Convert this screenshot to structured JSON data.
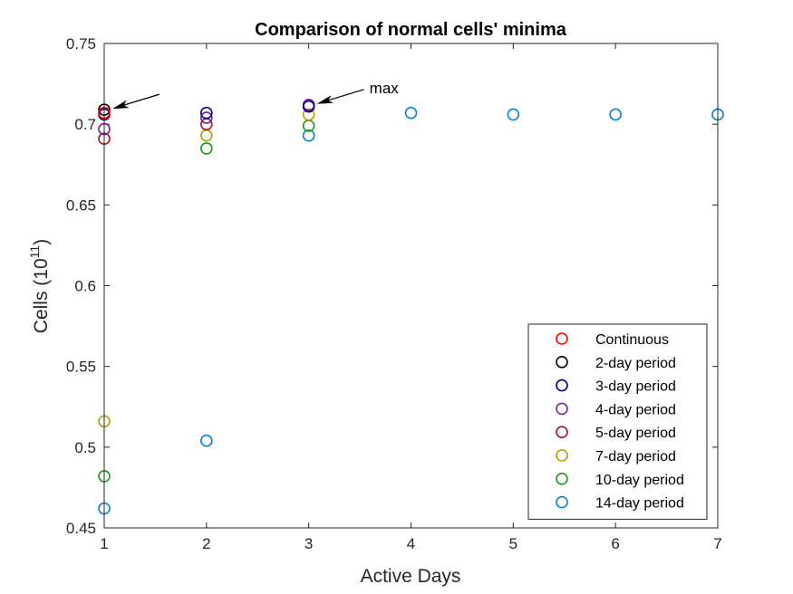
{
  "chart_data": {
    "type": "scatter",
    "title": "Comparison of normal cells' minima",
    "xlabel": "Active Days",
    "ylabel_base": "Cells (10",
    "ylabel_exp": "11",
    "ylabel_end": ")",
    "xlim": [
      1,
      7
    ],
    "ylim": [
      0.45,
      0.75
    ],
    "xticks": [
      1,
      2,
      3,
      4,
      5,
      6,
      7
    ],
    "yticks": [
      0.45,
      0.5,
      0.55,
      0.6,
      0.65,
      0.7,
      0.75
    ],
    "ytick_labels": [
      "0.45",
      "0.5",
      "0.55",
      "0.6",
      "0.65",
      "0.7",
      "0.75"
    ],
    "grid": false,
    "legend_position": "bottom-right",
    "series": [
      {
        "name": "Continuous",
        "color": "#ff0000",
        "x": [
          1
        ],
        "y": [
          0.707
        ]
      },
      {
        "name": "2-day period",
        "color": "#000000",
        "x": [
          1
        ],
        "y": [
          0.709
        ]
      },
      {
        "name": "3-day period",
        "color": "#00008b",
        "x": [
          1,
          2,
          3
        ],
        "y": [
          0.706,
          0.707,
          0.711
        ]
      },
      {
        "name": "4-day period",
        "color": "#7e1e9c",
        "x": [
          1,
          2,
          3
        ],
        "y": [
          0.697,
          0.704,
          0.712
        ]
      },
      {
        "name": "5-day period",
        "color": "#a2142f",
        "x": [
          1,
          2,
          3
        ],
        "y": [
          0.691,
          0.7,
          0.711
        ]
      },
      {
        "name": "7-day period",
        "color": "#b3a100",
        "x": [
          1,
          2,
          3
        ],
        "y": [
          0.516,
          0.693,
          0.706
        ]
      },
      {
        "name": "10-day period",
        "color": "#1a9a1a",
        "x": [
          1,
          2,
          3
        ],
        "y": [
          0.482,
          0.685,
          0.699
        ]
      },
      {
        "name": "14-day period",
        "color": "#0d7fcf",
        "x": [
          1,
          2,
          3,
          4,
          5,
          6,
          7
        ],
        "y": [
          0.462,
          0.504,
          0.693,
          0.707,
          0.706,
          0.706,
          0.706
        ]
      }
    ],
    "annotations": [
      {
        "text": "",
        "tip_x": 1,
        "tip_y": 0.709
      },
      {
        "text": "max",
        "tip_x": 3,
        "tip_y": 0.712
      }
    ]
  }
}
